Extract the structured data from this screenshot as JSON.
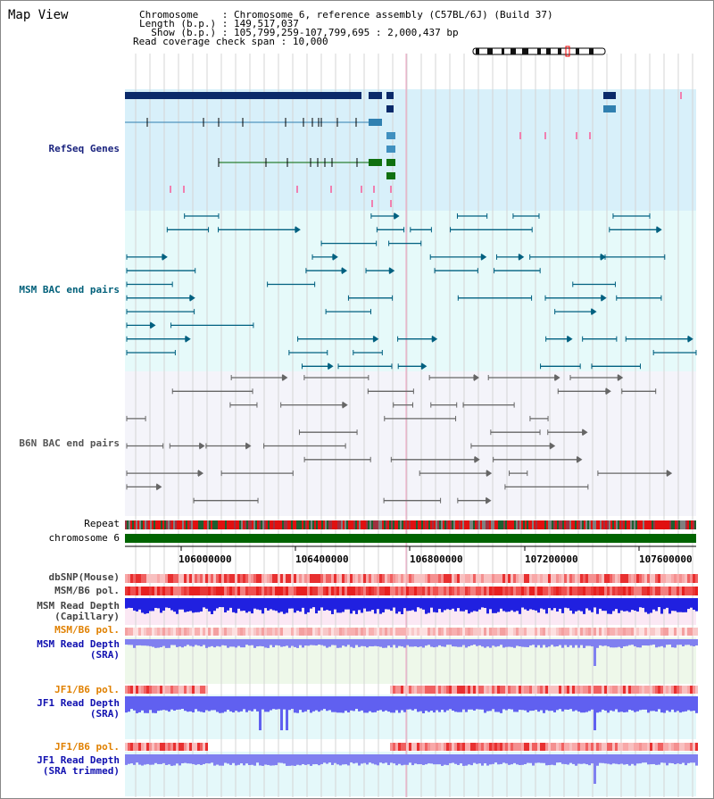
{
  "window": {
    "title": "Map View"
  },
  "header": {
    "lines": [
      {
        "key": "Chromosome    ",
        "value": "Chromosome 6, reference assembly (C57BL/6J) (Build 37)"
      },
      {
        "key": "Length (b.p.) ",
        "value": "149,517,037"
      },
      {
        "key": "  Show (b.p.) ",
        "value": "105,799,259-107,799,695 : 2,000,437 bp"
      },
      {
        "key": "Read coverage check span",
        "value": "10,000"
      }
    ]
  },
  "tracks": {
    "refseq": {
      "label": "RefSeq Genes",
      "color": "#1a237e"
    },
    "msm_bac": {
      "label": "MSM BAC end pairs",
      "color": "#00607a"
    },
    "b6n_bac": {
      "label": "B6N BAC end pairs",
      "color": "#555555"
    },
    "repeat": {
      "label": "Repeat"
    },
    "chromosome": {
      "label": "chromosome 6"
    },
    "dbsnp": {
      "label": "dbSNP(Mouse)"
    },
    "msm_pol": {
      "label": "MSM/B6 pol."
    },
    "msm_depth_cap": {
      "label1": "MSM Read Depth",
      "label2": "(Capillary)"
    },
    "msm_pol2": {
      "label": "MSM/B6 pol.",
      "color": "#e08000"
    },
    "msm_depth_sra": {
      "label1": "MSM Read Depth",
      "label2": "(SRA)"
    },
    "jf1_pol": {
      "label": "JF1/B6 pol.",
      "color": "#e08000"
    },
    "jf1_depth_sra": {
      "label1": "JF1 Read Depth",
      "label2": "(SRA)"
    },
    "jf1_pol2": {
      "label": "JF1/B6 pol.",
      "color": "#e08000"
    },
    "jf1_depth_trim": {
      "label1": "JF1 Read Depth",
      "label2": "(SRA trimmed)"
    }
  },
  "axis": {
    "ticks": [
      "106000000",
      "106400000",
      "106800000",
      "107200000",
      "107600000"
    ]
  },
  "colors": {
    "refseq_bg": "#d8f0fa",
    "msm_bg": "#e6fafa",
    "b6n_bg": "#f4f4fa",
    "chrom": "#006400",
    "snp_red": "#f05050",
    "depth_blue": "#2020e0",
    "depth_light": "#8080f0"
  }
}
